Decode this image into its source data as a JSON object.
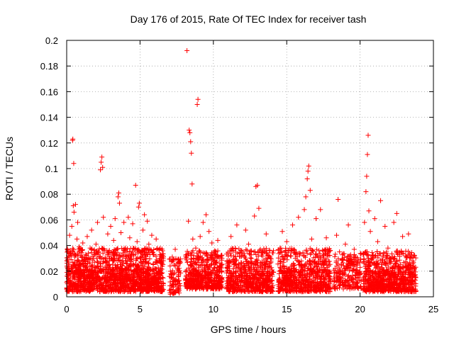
{
  "chart_data": {
    "type": "scatter",
    "title": "Day 176 of 2015, Rate Of TEC Index for receiver tash",
    "xlabel": "GPS time / hours",
    "ylabel": "ROTI / TECUs",
    "xlim": [
      0,
      25
    ],
    "ylim": [
      0,
      0.2
    ],
    "xticks": [
      {
        "value": 0,
        "label": "0"
      },
      {
        "value": 5,
        "label": "5"
      },
      {
        "value": 10,
        "label": "10"
      },
      {
        "value": 15,
        "label": "15"
      },
      {
        "value": 20,
        "label": "20"
      },
      {
        "value": 25,
        "label": "25"
      }
    ],
    "yticks": [
      {
        "value": 0,
        "label": "0"
      },
      {
        "value": 0.02,
        "label": "0.02"
      },
      {
        "value": 0.04,
        "label": "0.04"
      },
      {
        "value": 0.06,
        "label": "0.06"
      },
      {
        "value": 0.08,
        "label": "0.08"
      },
      {
        "value": 0.1,
        "label": "0.1"
      },
      {
        "value": 0.12,
        "label": "0.12"
      },
      {
        "value": 0.14,
        "label": "0.14"
      },
      {
        "value": 0.16,
        "label": "0.16"
      },
      {
        "value": 0.18,
        "label": "0.18"
      },
      {
        "value": 0.2,
        "label": "0.2"
      }
    ],
    "grid": true,
    "marker": "+",
    "marker_color": "#ff0000",
    "series": [
      {
        "name": "ROTI",
        "points": [
          [
            0.05,
            0.012
          ],
          [
            0.1,
            0.035
          ],
          [
            0.15,
            0.021
          ],
          [
            0.2,
            0.048
          ],
          [
            0.25,
            0.008
          ],
          [
            0.3,
            0.029
          ],
          [
            0.35,
            0.055
          ],
          [
            0.4,
            0.122
          ],
          [
            0.42,
            0.123
          ],
          [
            0.45,
            0.071
          ],
          [
            0.48,
            0.104
          ],
          [
            0.5,
            0.066
          ],
          [
            0.55,
            0.031
          ],
          [
            0.6,
            0.072
          ],
          [
            0.65,
            0.018
          ],
          [
            0.7,
            0.045
          ],
          [
            0.75,
            0.058
          ],
          [
            0.8,
            0.011
          ],
          [
            0.85,
            0.039
          ],
          [
            0.9,
            0.025
          ],
          [
            1.0,
            0.015
          ],
          [
            1.1,
            0.042
          ],
          [
            1.2,
            0.009
          ],
          [
            1.3,
            0.033
          ],
          [
            1.4,
            0.047
          ],
          [
            1.5,
            0.019
          ],
          [
            1.6,
            0.038
          ],
          [
            1.7,
            0.052
          ],
          [
            1.8,
            0.014
          ],
          [
            1.9,
            0.027
          ],
          [
            2.0,
            0.041
          ],
          [
            2.1,
            0.058
          ],
          [
            2.2,
            0.022
          ],
          [
            2.3,
            0.099
          ],
          [
            2.35,
            0.105
          ],
          [
            2.4,
            0.109
          ],
          [
            2.45,
            0.101
          ],
          [
            2.5,
            0.062
          ],
          [
            2.6,
            0.036
          ],
          [
            2.7,
            0.012
          ],
          [
            2.8,
            0.049
          ],
          [
            2.9,
            0.028
          ],
          [
            3.0,
            0.055
          ],
          [
            3.1,
            0.017
          ],
          [
            3.2,
            0.044
          ],
          [
            3.3,
            0.061
          ],
          [
            3.4,
            0.032
          ],
          [
            3.5,
            0.078
          ],
          [
            3.55,
            0.081
          ],
          [
            3.6,
            0.073
          ],
          [
            3.7,
            0.05
          ],
          [
            3.8,
            0.024
          ],
          [
            3.9,
            0.058
          ],
          [
            4.0,
            0.038
          ],
          [
            4.1,
            0.013
          ],
          [
            4.2,
            0.062
          ],
          [
            4.3,
            0.046
          ],
          [
            4.4,
            0.029
          ],
          [
            4.5,
            0.057
          ],
          [
            4.6,
            0.021
          ],
          [
            4.7,
            0.087
          ],
          [
            4.8,
            0.043
          ],
          [
            4.9,
            0.07
          ],
          [
            4.95,
            0.073
          ],
          [
            5.0,
            0.035
          ],
          [
            5.1,
            0.016
          ],
          [
            5.2,
            0.052
          ],
          [
            5.3,
            0.064
          ],
          [
            5.4,
            0.027
          ],
          [
            5.5,
            0.059
          ],
          [
            5.6,
            0.041
          ],
          [
            5.7,
            0.011
          ],
          [
            5.8,
            0.048
          ],
          [
            5.9,
            0.033
          ],
          [
            6.0,
            0.022
          ],
          [
            6.1,
            0.045
          ],
          [
            6.2,
            0.014
          ],
          [
            6.3,
            0.037
          ],
          [
            6.4,
            0.019
          ],
          [
            6.5,
            0.028
          ],
          [
            7.0,
            0.005
          ],
          [
            7.1,
            0.018
          ],
          [
            7.2,
            0.031
          ],
          [
            7.3,
            0.012
          ],
          [
            7.4,
            0.037
          ],
          [
            7.5,
            0.009
          ],
          [
            7.6,
            0.024
          ],
          [
            8.2,
            0.192
          ],
          [
            8.3,
            0.059
          ],
          [
            8.35,
            0.13
          ],
          [
            8.4,
            0.128
          ],
          [
            8.45,
            0.121
          ],
          [
            8.5,
            0.112
          ],
          [
            8.55,
            0.088
          ],
          [
            8.6,
            0.045
          ],
          [
            8.7,
            0.022
          ],
          [
            8.8,
            0.038
          ],
          [
            8.9,
            0.15
          ],
          [
            8.95,
            0.154
          ],
          [
            9.0,
            0.03
          ],
          [
            9.1,
            0.047
          ],
          [
            9.2,
            0.016
          ],
          [
            9.3,
            0.058
          ],
          [
            9.4,
            0.034
          ],
          [
            9.5,
            0.064
          ],
          [
            9.6,
            0.025
          ],
          [
            9.7,
            0.051
          ],
          [
            9.8,
            0.013
          ],
          [
            9.9,
            0.042
          ],
          [
            10.0,
            0.028
          ],
          [
            10.1,
            0.036
          ],
          [
            10.2,
            0.019
          ],
          [
            10.3,
            0.044
          ],
          [
            10.4,
            0.023
          ],
          [
            10.5,
            0.031
          ],
          [
            10.6,
            0.015
          ],
          [
            11.0,
            0.022
          ],
          [
            11.2,
            0.047
          ],
          [
            11.4,
            0.011
          ],
          [
            11.6,
            0.056
          ],
          [
            11.8,
            0.034
          ],
          [
            12.0,
            0.018
          ],
          [
            12.2,
            0.052
          ],
          [
            12.4,
            0.041
          ],
          [
            12.6,
            0.026
          ],
          [
            12.8,
            0.063
          ],
          [
            12.9,
            0.086
          ],
          [
            13.0,
            0.087
          ],
          [
            13.1,
            0.069
          ],
          [
            13.2,
            0.037
          ],
          [
            13.4,
            0.014
          ],
          [
            13.6,
            0.049
          ],
          [
            13.8,
            0.032
          ],
          [
            14.0,
            0.021
          ],
          [
            14.5,
            0.012
          ],
          [
            14.6,
            0.038
          ],
          [
            14.7,
            0.051
          ],
          [
            14.8,
            0.024
          ],
          [
            15.0,
            0.043
          ],
          [
            15.2,
            0.017
          ],
          [
            15.4,
            0.056
          ],
          [
            15.6,
            0.033
          ],
          [
            15.8,
            0.062
          ],
          [
            16.0,
            0.028
          ],
          [
            16.2,
            0.068
          ],
          [
            16.3,
            0.078
          ],
          [
            16.4,
            0.092
          ],
          [
            16.45,
            0.098
          ],
          [
            16.5,
            0.102
          ],
          [
            16.6,
            0.083
          ],
          [
            16.7,
            0.045
          ],
          [
            16.8,
            0.019
          ],
          [
            17.0,
            0.061
          ],
          [
            17.2,
            0.036
          ],
          [
            17.3,
            0.068
          ],
          [
            17.5,
            0.025
          ],
          [
            17.7,
            0.046
          ],
          [
            17.9,
            0.014
          ],
          [
            18.3,
            0.022
          ],
          [
            18.4,
            0.048
          ],
          [
            18.5,
            0.076
          ],
          [
            18.6,
            0.035
          ],
          [
            18.8,
            0.018
          ],
          [
            19.0,
            0.041
          ],
          [
            19.2,
            0.056
          ],
          [
            19.4,
            0.027
          ],
          [
            19.6,
            0.037
          ],
          [
            19.8,
            0.015
          ],
          [
            20.0,
            0.023
          ],
          [
            20.2,
            0.033
          ],
          [
            20.3,
            0.058
          ],
          [
            20.4,
            0.082
          ],
          [
            20.45,
            0.094
          ],
          [
            20.5,
            0.111
          ],
          [
            20.55,
            0.126
          ],
          [
            20.6,
            0.067
          ],
          [
            20.7,
            0.051
          ],
          [
            20.8,
            0.029
          ],
          [
            21.0,
            0.061
          ],
          [
            21.2,
            0.043
          ],
          [
            21.4,
            0.075
          ],
          [
            21.5,
            0.022
          ],
          [
            21.7,
            0.055
          ],
          [
            21.9,
            0.038
          ],
          [
            22.1,
            0.016
          ],
          [
            22.3,
            0.058
          ],
          [
            22.5,
            0.065
          ],
          [
            22.7,
            0.033
          ],
          [
            22.9,
            0.047
          ],
          [
            23.1,
            0.024
          ],
          [
            23.3,
            0.049
          ],
          [
            23.5,
            0.012
          ],
          [
            23.6,
            0.031
          ]
        ],
        "dense_blocks": [
          {
            "x0": 0.0,
            "x1": 6.6,
            "y0": 0.004,
            "y1": 0.038,
            "count": 950
          },
          {
            "x0": 0.0,
            "x1": 6.6,
            "y0": 0.004,
            "y1": 0.022,
            "count": 550
          },
          {
            "x0": 7.0,
            "x1": 7.8,
            "y0": 0.002,
            "y1": 0.03,
            "count": 90
          },
          {
            "x0": 8.1,
            "x1": 10.6,
            "y0": 0.006,
            "y1": 0.036,
            "count": 360
          },
          {
            "x0": 8.1,
            "x1": 10.6,
            "y0": 0.006,
            "y1": 0.02,
            "count": 160
          },
          {
            "x0": 10.9,
            "x1": 14.1,
            "y0": 0.004,
            "y1": 0.038,
            "count": 420
          },
          {
            "x0": 10.9,
            "x1": 14.1,
            "y0": 0.004,
            "y1": 0.02,
            "count": 200
          },
          {
            "x0": 14.4,
            "x1": 18.0,
            "y0": 0.004,
            "y1": 0.038,
            "count": 460
          },
          {
            "x0": 14.4,
            "x1": 18.0,
            "y0": 0.004,
            "y1": 0.02,
            "count": 220
          },
          {
            "x0": 18.2,
            "x1": 20.1,
            "y0": 0.006,
            "y1": 0.034,
            "count": 220
          },
          {
            "x0": 20.2,
            "x1": 23.8,
            "y0": 0.004,
            "y1": 0.036,
            "count": 520
          },
          {
            "x0": 20.2,
            "x1": 23.8,
            "y0": 0.004,
            "y1": 0.02,
            "count": 250
          }
        ]
      }
    ]
  }
}
